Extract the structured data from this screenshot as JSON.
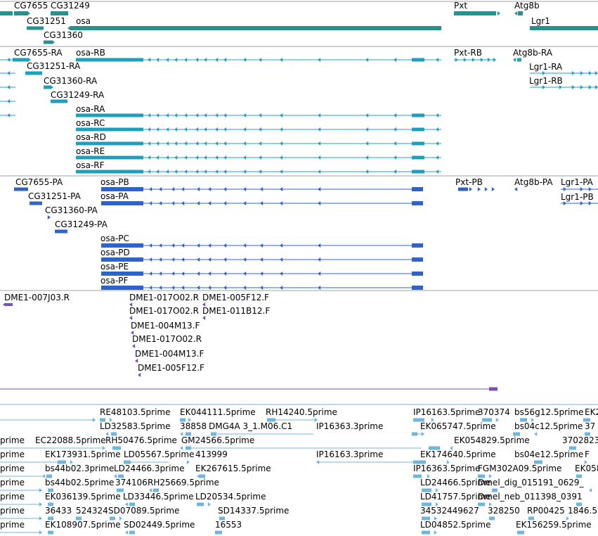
{
  "colors": {
    "gene": "#2a8f8f",
    "transcript": "#1f9fc0",
    "protein": "#2e63c8",
    "clone": "#7a4fb0",
    "est": "#6fb6dc",
    "divider": "#a0a0a0"
  },
  "tracks": {
    "genes": [
      "CG7655",
      "CG31249",
      "CG31251",
      "osa",
      "CG31360",
      "Pxt",
      "Atg8b",
      "Lgr1"
    ],
    "transcripts": [
      "CG7655-RA",
      "osa-RB",
      "Pxt-RB",
      "Atg8b-RA",
      "CG31251-RA",
      "Lgr1-RA",
      "CG31360-RA",
      "Lgr1-RB",
      "CG31249-RA",
      "osa-RA",
      "osa-RC",
      "osa-RD",
      "osa-RE",
      "osa-RF"
    ],
    "proteins": [
      "CG7655-PA",
      "osa-PB",
      "Pxt-PB",
      "Atg8b-PA",
      "Lgr1-PA",
      "CG31251-PA",
      "osa-PA",
      "Lgr1-PB",
      "CG31360-PA",
      "CG31249-PA",
      "osa-PC",
      "osa-PD",
      "osa-PE",
      "osa-PF"
    ],
    "clones": [
      "DME1-007J03.R",
      "DME1-017O02.R",
      "DME1-005F12.F",
      "DME1-017O02.R",
      "DME1-011B12.F",
      "DME1-004M13.F",
      "DME1-017O02.R",
      "DME1-004M13.F",
      "DME1-005F12.F"
    ],
    "ests": [
      "RE48103.5prime",
      "EK044111.5prime",
      "RH14240.5prime",
      "IP16163.5prime",
      "370374",
      "bs56g12.5prime",
      "EK2",
      "LD32583.5prime",
      "38858",
      "DMG4A 3_1.M06.C1",
      "IP16363.3prime",
      "EK065747.5prime",
      "bs04c12.5prime",
      "37",
      "prime",
      "EC22088.5prime",
      "RH50476.5prime",
      "GM24566.5prime",
      "EK054829.5prime",
      "3702823",
      "prime",
      "EK173931.5prime",
      "LD05567.5prime",
      "413999",
      "IP16163.3prime",
      "EK174640.5prime",
      "bs04e12.5prime",
      "F",
      "prime",
      "bs44b02.3prime",
      "LD24466.3prime",
      "EK267615.5prime",
      "IP16363.5prime",
      "FGM302A09.5prime",
      "EK058",
      "prime",
      "bs44b02.5prime",
      "374106",
      "RH25669.5prime",
      "LD24466.5prime",
      "Dmel_dig_015191_0629_",
      "prime",
      "EK036139.5prime",
      "LD33446.5prime",
      "LD20534.5prime",
      "LD41757.5prime",
      "Dmel_neb_011398_0391",
      "prime",
      "36433",
      "524324",
      "SD07089.5prime",
      "SD14337.5prime",
      "34532",
      "449627",
      "328250",
      "RP00425",
      "1846.5",
      "prime",
      "EK108907.5prime",
      "SD02449.5prime",
      "16553",
      "LD04852.5prime",
      "EK156259.5prime"
    ]
  }
}
